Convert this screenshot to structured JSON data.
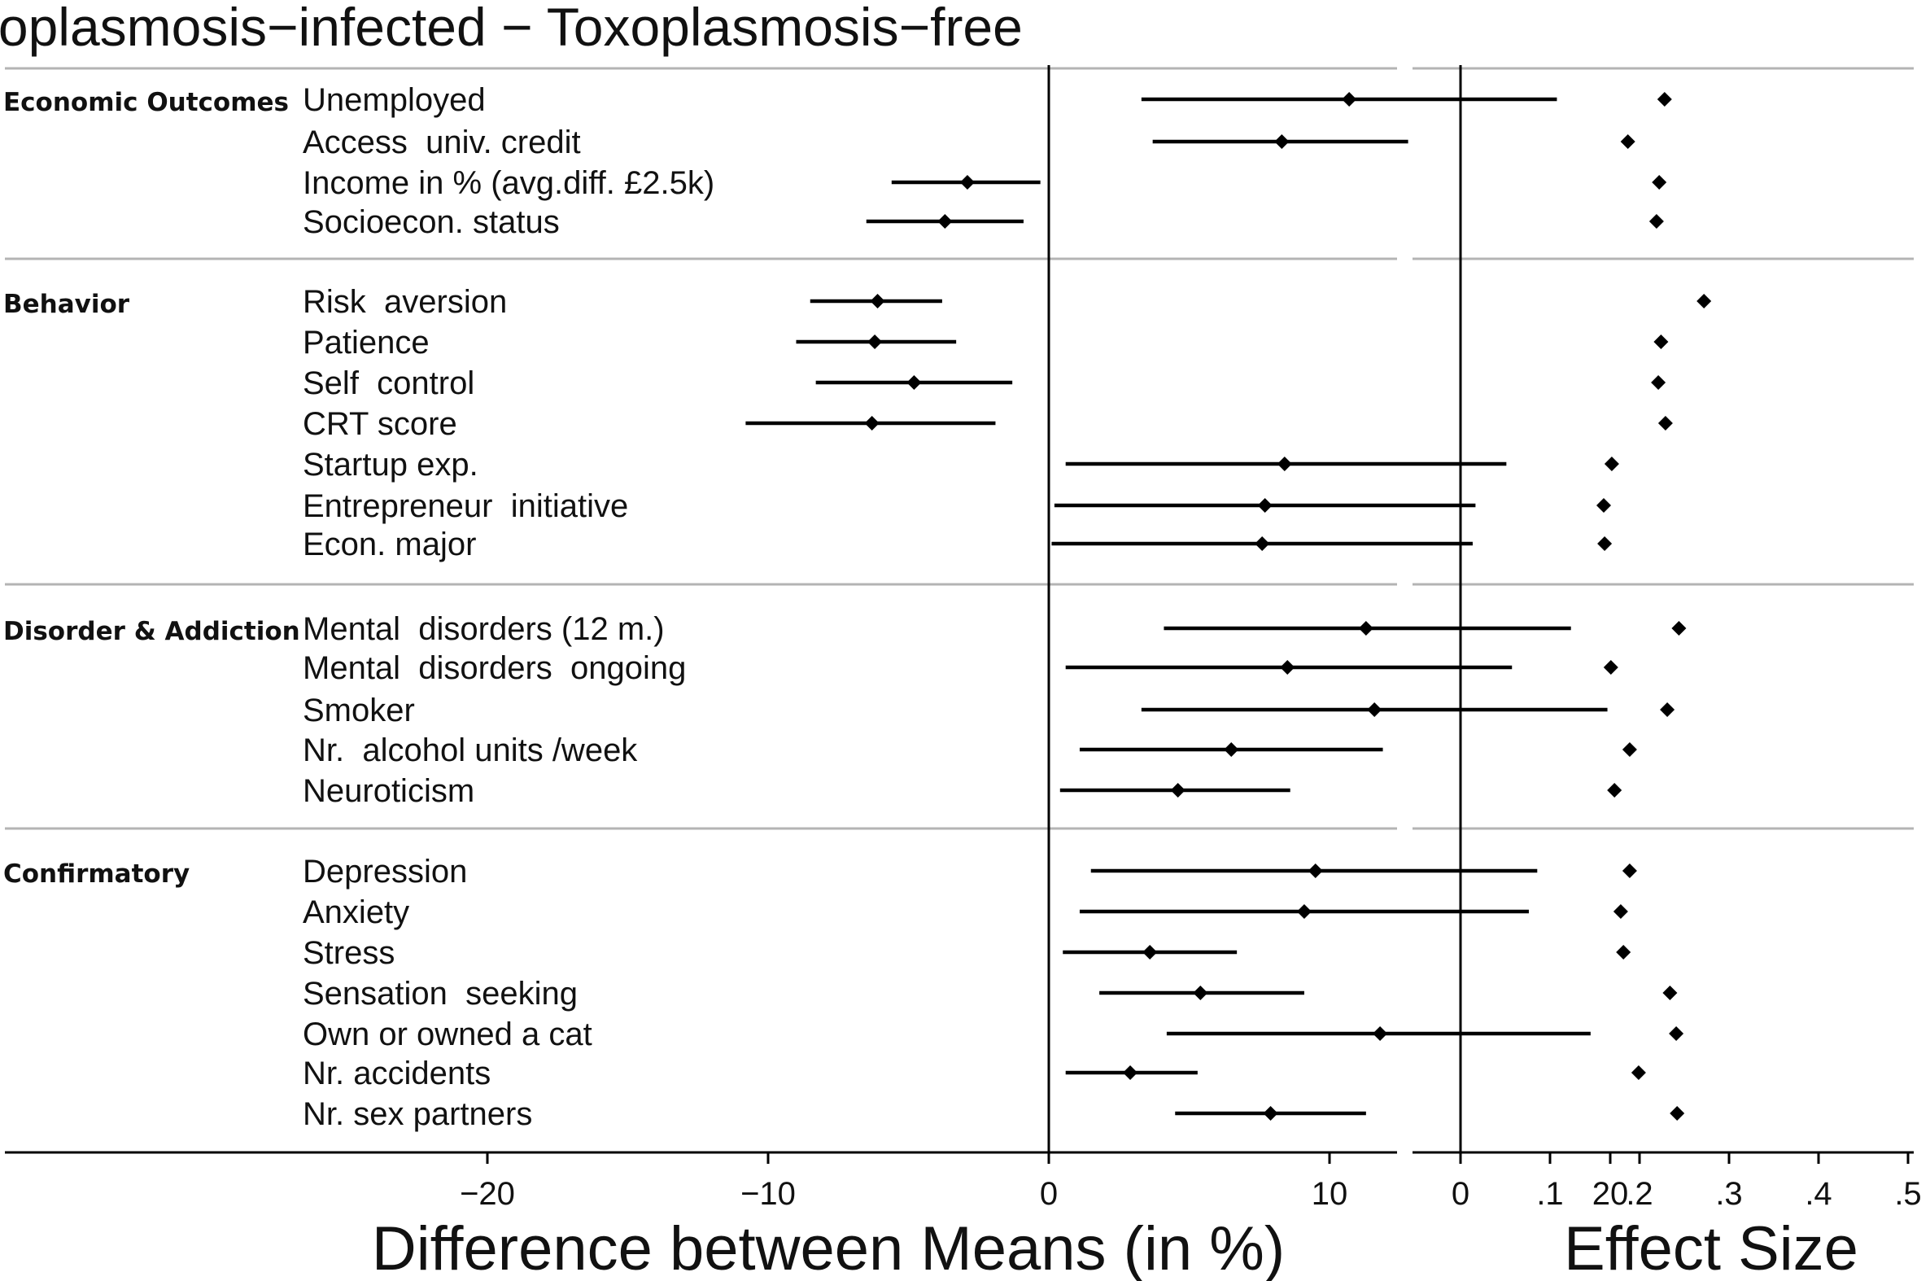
{
  "chart_data": {
    "type": "forest",
    "title": "Toxoplasmosis−infected − Toxoplasmosis−free",
    "left_panel": {
      "xlabel": "Difference between Means (in %)",
      "xlim": [
        -30,
        25
      ],
      "ticks": [
        -20,
        -10,
        0,
        10,
        20
      ],
      "tick_labels": [
        "−20",
        "−10",
        "0",
        "10",
        "20"
      ]
    },
    "right_panel": {
      "xlabel": "Effect Size",
      "xlim": [
        0,
        0.5
      ],
      "ticks": [
        0,
        0.1,
        0.2,
        0.3,
        0.4,
        0.5
      ],
      "tick_labels": [
        "0",
        ".1",
        ".2",
        ".3",
        ".4",
        ".5"
      ]
    },
    "groups": [
      {
        "name": "Economic Outcomes",
        "rows": [
          {
            "label": "Unemployed",
            "mean": 10.7,
            "lo": 3.3,
            "hi": 18.1,
            "effect": 0.228
          },
          {
            "label": "Access  univ. credit",
            "mean": 8.3,
            "lo": 3.7,
            "hi": 12.8,
            "effect": 0.187
          },
          {
            "label": "Income in % (avg.diff. £2.5k)",
            "mean": -2.9,
            "lo": -5.6,
            "hi": -0.3,
            "effect": 0.222
          },
          {
            "label": "Socioecon. status",
            "mean": -3.7,
            "lo": -6.5,
            "hi": -0.9,
            "effect": 0.219
          }
        ]
      },
      {
        "name": "Behavior",
        "rows": [
          {
            "label": "Risk  aversion",
            "mean": -6.1,
            "lo": -8.5,
            "hi": -3.8,
            "effect": 0.272
          },
          {
            "label": "Patience",
            "mean": -6.2,
            "lo": -9.0,
            "hi": -3.3,
            "effect": 0.224
          },
          {
            "label": "Self  control",
            "mean": -4.8,
            "lo": -8.3,
            "hi": -1.3,
            "effect": 0.221
          },
          {
            "label": "CRT score",
            "mean": -6.3,
            "lo": -10.8,
            "hi": -1.9,
            "effect": 0.229
          },
          {
            "label": "Startup exp.",
            "mean": 8.4,
            "lo": 0.6,
            "hi": 16.3,
            "effect": 0.169
          },
          {
            "label": "Entrepreneur  initiative",
            "mean": 7.7,
            "lo": 0.2,
            "hi": 15.2,
            "effect": 0.16
          },
          {
            "label": "Econ. major",
            "mean": 7.6,
            "lo": 0.1,
            "hi": 15.1,
            "effect": 0.161
          }
        ]
      },
      {
        "name": "Disorder & Addiction",
        "rows": [
          {
            "label": "Mental  disorders (12 m.)",
            "mean": 11.3,
            "lo": 4.1,
            "hi": 18.6,
            "effect": 0.244
          },
          {
            "label": "Mental  disorders  ongoing",
            "mean": 8.5,
            "lo": 0.6,
            "hi": 16.5,
            "effect": 0.168
          },
          {
            "label": "Smoker",
            "mean": 11.6,
            "lo": 3.3,
            "hi": 19.9,
            "effect": 0.231
          },
          {
            "label": "Nr.  alcohol units /week",
            "mean": 6.5,
            "lo": 1.1,
            "hi": 11.9,
            "effect": 0.189
          },
          {
            "label": "Neuroticism",
            "mean": 4.6,
            "lo": 0.4,
            "hi": 8.6,
            "effect": 0.172
          }
        ]
      },
      {
        "name": "Confirmatory",
        "rows": [
          {
            "label": "Depression",
            "mean": 9.5,
            "lo": 1.5,
            "hi": 17.4,
            "effect": 0.189
          },
          {
            "label": "Anxiety",
            "mean": 9.1,
            "lo": 1.1,
            "hi": 17.1,
            "effect": 0.179
          },
          {
            "label": "Stress",
            "mean": 3.6,
            "lo": 0.5,
            "hi": 6.7,
            "effect": 0.182
          },
          {
            "label": "Sensation  seeking",
            "mean": 5.4,
            "lo": 1.8,
            "hi": 9.1,
            "effect": 0.234
          },
          {
            "label": "Own or owned a cat",
            "mean": 11.8,
            "lo": 4.2,
            "hi": 19.3,
            "effect": 0.241
          },
          {
            "label": "Nr. accidents",
            "mean": 2.9,
            "lo": 0.6,
            "hi": 5.3,
            "effect": 0.199
          },
          {
            "label": "Nr. sex partners",
            "mean": 7.9,
            "lo": 4.5,
            "hi": 11.3,
            "effect": 0.242
          }
        ]
      }
    ]
  }
}
